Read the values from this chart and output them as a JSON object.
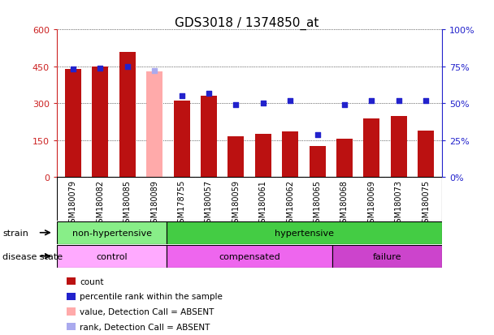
{
  "title": "GDS3018 / 1374850_at",
  "samples": [
    "GSM180079",
    "GSM180082",
    "GSM180085",
    "GSM180089",
    "GSM178755",
    "GSM180057",
    "GSM180059",
    "GSM180061",
    "GSM180062",
    "GSM180065",
    "GSM180068",
    "GSM180069",
    "GSM180073",
    "GSM180075"
  ],
  "bar_values": [
    440,
    450,
    510,
    430,
    310,
    330,
    165,
    175,
    185,
    125,
    155,
    240,
    250,
    190
  ],
  "bar_absent": [
    false,
    false,
    false,
    true,
    false,
    false,
    false,
    false,
    false,
    false,
    false,
    false,
    false,
    false
  ],
  "percentile_values": [
    73,
    74,
    75,
    72,
    55,
    57,
    49,
    50,
    52,
    29,
    49,
    52,
    52,
    52
  ],
  "percentile_absent": [
    false,
    false,
    false,
    true,
    false,
    false,
    false,
    false,
    false,
    false,
    false,
    false,
    false,
    false
  ],
  "ylim_left": [
    0,
    600
  ],
  "ylim_right": [
    0,
    100
  ],
  "yticks_left": [
    0,
    150,
    300,
    450,
    600
  ],
  "yticks_right": [
    0,
    25,
    50,
    75,
    100
  ],
  "ytick_labels_left": [
    "0",
    "150",
    "300",
    "450",
    "600"
  ],
  "ytick_labels_right": [
    "0%",
    "25%",
    "50%",
    "75%",
    "100%"
  ],
  "bar_color_normal": "#bb1111",
  "bar_color_absent": "#ffaaaa",
  "dot_color_normal": "#2222cc",
  "dot_color_absent": "#aaaaee",
  "strain_groups": [
    {
      "label": "non-hypertensive",
      "start": 0,
      "end": 3,
      "color": "#88ee88"
    },
    {
      "label": "hypertensive",
      "start": 4,
      "end": 13,
      "color": "#44cc44"
    }
  ],
  "disease_groups": [
    {
      "label": "control",
      "start": 0,
      "end": 3,
      "color": "#ffaaff"
    },
    {
      "label": "compensated",
      "start": 4,
      "end": 9,
      "color": "#ee66ee"
    },
    {
      "label": "failure",
      "start": 10,
      "end": 13,
      "color": "#cc44cc"
    }
  ],
  "left_axis_color": "#cc2222",
  "right_axis_color": "#2222cc",
  "xtick_bg_color": "#cccccc",
  "legend_items": [
    {
      "label": "count",
      "color": "#bb1111"
    },
    {
      "label": "percentile rank within the sample",
      "color": "#2222cc"
    },
    {
      "label": "value, Detection Call = ABSENT",
      "color": "#ffaaaa"
    },
    {
      "label": "rank, Detection Call = ABSENT",
      "color": "#aaaaee"
    }
  ]
}
